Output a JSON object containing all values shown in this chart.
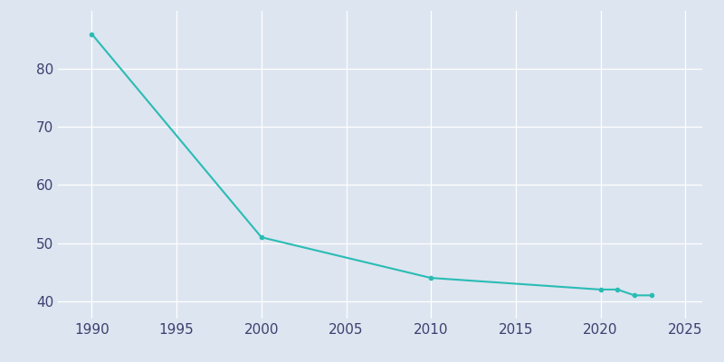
{
  "years": [
    1990,
    2000,
    2010,
    2020,
    2021,
    2022,
    2023
  ],
  "population": [
    86,
    51,
    44,
    42,
    42,
    41,
    41
  ],
  "line_color": "#2abcb4",
  "marker_color": "#2abcb4",
  "marker_style": "o",
  "marker_size": 3,
  "line_width": 1.5,
  "bg_color": "#dde5f0",
  "fig_bg_color": "#dde5f0",
  "xlim": [
    1988,
    2026
  ],
  "ylim": [
    37,
    90
  ],
  "xticks": [
    1990,
    1995,
    2000,
    2005,
    2010,
    2015,
    2020,
    2025
  ],
  "yticks": [
    40,
    50,
    60,
    70,
    80
  ],
  "grid_color": "#ffffff",
  "grid_linewidth": 0.9,
  "tick_label_color": "#3c4070",
  "tick_fontsize": 11
}
